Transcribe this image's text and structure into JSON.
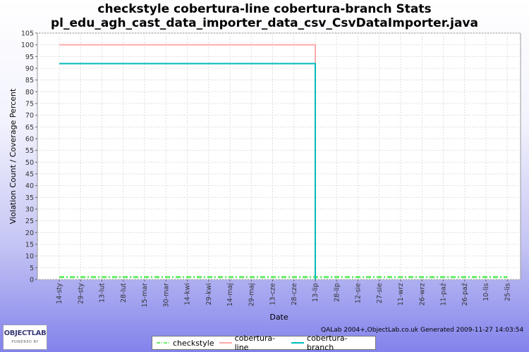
{
  "page": {
    "footer": "QALab 2004+,ObjectLab.co.uk Generated 2009-11-27 14:03:54",
    "logo_name": "OBJECTLAB",
    "logo_tagline": "POWERED BY"
  },
  "colors": {
    "checkstyle": "#66ee66",
    "cobertura_line": "#ffaaaa",
    "cobertura_branch": "#00bbbb"
  },
  "chart_data": {
    "type": "line",
    "title": "checkstyle cobertura-line cobertura-branch  Stats",
    "subtitle": "pl_edu_agh_cast_data_importer_data_csv_CsvDataImporter.java",
    "xlabel": "Date",
    "ylabel": "Violation Count / Coverage Percent",
    "ylim": [
      0,
      105
    ],
    "y_ticks": [
      0,
      5,
      10,
      15,
      20,
      25,
      30,
      35,
      40,
      45,
      50,
      55,
      60,
      65,
      70,
      75,
      80,
      85,
      90,
      95,
      100,
      105
    ],
    "categories": [
      "14-sty",
      "29-sty",
      "13-lut",
      "28-lut",
      "15-mar",
      "30-mar",
      "14-kwi",
      "29-kwi",
      "14-maj",
      "29-maj",
      "13-cze",
      "28-cze",
      "13-lip",
      "28-lip",
      "12-sie",
      "27-sie",
      "11-wrz",
      "26-wrz",
      "11-paź",
      "26-paź",
      "10-lis",
      "25-lis"
    ],
    "grid": true,
    "legend_position": "bottom",
    "series": [
      {
        "name": "checkstyle",
        "style": "dash-dot",
        "points": [
          [
            "14-sty",
            1
          ],
          [
            "13-lip",
            1
          ],
          [
            "25-lis",
            1
          ]
        ]
      },
      {
        "name": "cobertura-line",
        "style": "solid",
        "points": [
          [
            "14-sty",
            100
          ],
          [
            "13-lip",
            100
          ],
          [
            "13-lip",
            0
          ]
        ]
      },
      {
        "name": "cobertura-branch",
        "style": "solid",
        "points": [
          [
            "14-sty",
            92
          ],
          [
            "13-lip",
            92
          ],
          [
            "13-lip",
            0
          ]
        ]
      }
    ]
  }
}
